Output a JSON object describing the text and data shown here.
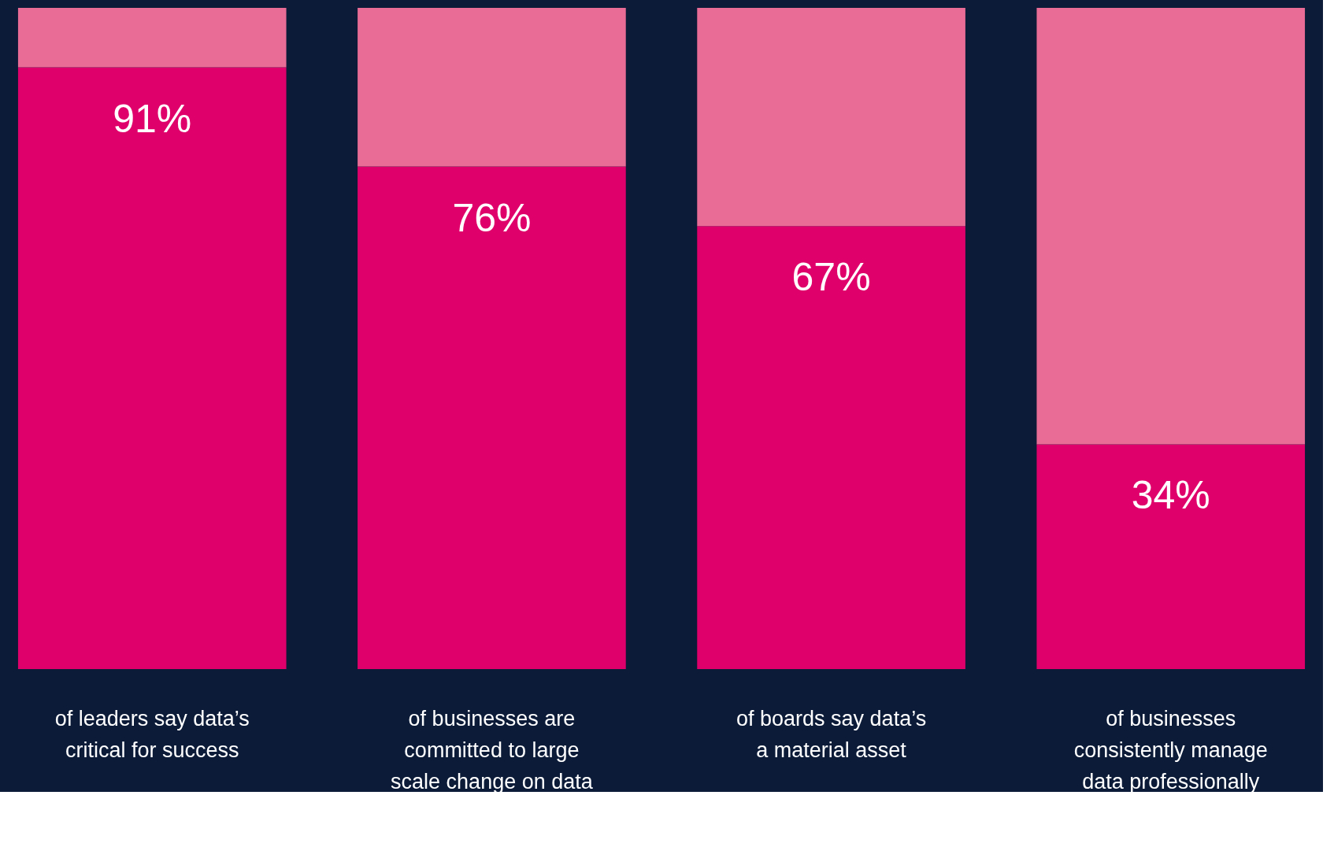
{
  "chart_data": {
    "type": "bar",
    "stacked": true,
    "categories": [
      "of leaders say data’s critical for success",
      "of businesses are committed to large scale change on data",
      "of boards say data’s a material asset",
      "of businesses consistently manage data professionally"
    ],
    "series": [
      {
        "color": "#e0006b",
        "values": [
          91,
          76,
          67,
          34
        ],
        "value_labels": [
          "91%",
          "76%",
          "67%",
          "34%"
        ]
      },
      {
        "color": "#e86c96",
        "values": [
          9,
          24,
          33,
          66
        ]
      }
    ],
    "ylim": [
      0,
      100
    ],
    "tick_labels": "x"
  }
}
